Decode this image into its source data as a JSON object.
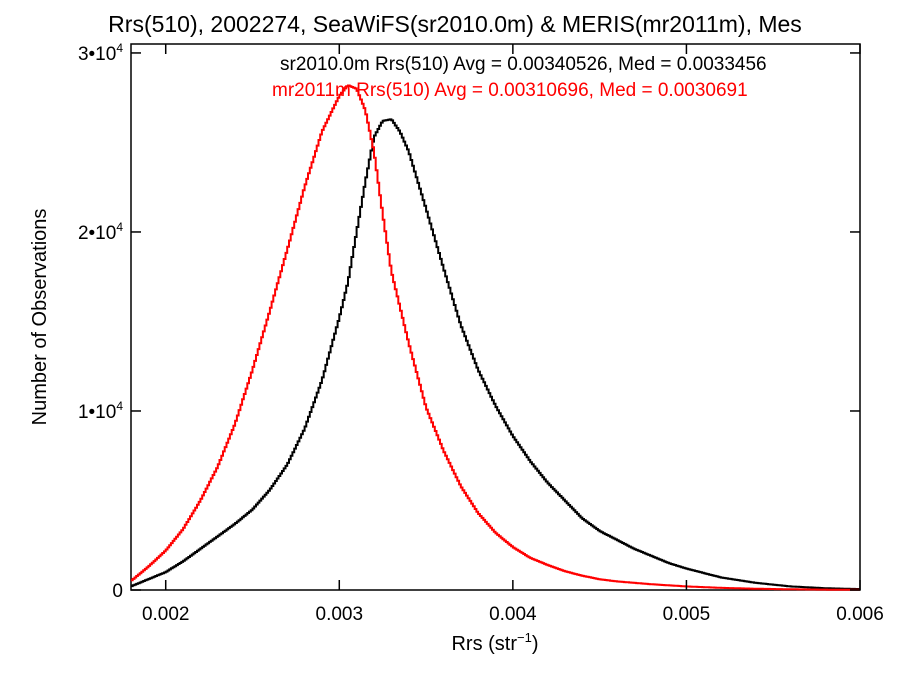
{
  "chart_data": {
    "type": "line",
    "title": "Rrs(510), 2002274, SeaWiFS(sr2010.0m) & MERIS(mr2011m), Mes",
    "xlabel": "Rrs (str",
    "xlabel_sup": "−1",
    "xlabel_suffix": ")",
    "ylabel": "Number of Observations",
    "xlim": [
      0.0018,
      0.006
    ],
    "ylim": [
      0,
      30500
    ],
    "x_ticks": [
      0.002,
      0.003,
      0.004,
      0.005,
      0.006
    ],
    "x_tick_labels": [
      "0.002",
      "0.003",
      "0.004",
      "0.005",
      "0.006"
    ],
    "y_ticks": [
      {
        "value": 0,
        "label": "0",
        "sup": ""
      },
      {
        "value": 10000,
        "label": "1•10",
        "sup": "4"
      },
      {
        "value": 20000,
        "label": "2•10",
        "sup": "4"
      },
      {
        "value": 30000,
        "label": "3•10",
        "sup": "4"
      }
    ],
    "grid": false,
    "legend_position": "top-right",
    "series": [
      {
        "name": "sr2010.0m Rrs(510) Avg = 0.00340526, Med = 0.0033456",
        "color": "#000000",
        "x": [
          0.0018,
          0.0019,
          0.002,
          0.0021,
          0.0022,
          0.0023,
          0.0024,
          0.0025,
          0.0026,
          0.0027,
          0.0028,
          0.0029,
          0.003,
          0.00305,
          0.0031,
          0.00315,
          0.0032,
          0.00325,
          0.0033,
          0.00335,
          0.0034,
          0.0035,
          0.0036,
          0.0037,
          0.0038,
          0.0039,
          0.004,
          0.0041,
          0.0042,
          0.0043,
          0.0044,
          0.0045,
          0.0046,
          0.0047,
          0.0048,
          0.0049,
          0.005,
          0.0052,
          0.0054,
          0.0056,
          0.0058,
          0.006
        ],
        "y": [
          200,
          600,
          1000,
          1600,
          2300,
          3000,
          3700,
          4500,
          5600,
          7000,
          9000,
          11700,
          15200,
          17200,
          20000,
          22800,
          25300,
          26200,
          26300,
          25600,
          24500,
          21300,
          18000,
          14800,
          12300,
          10300,
          8600,
          7200,
          6000,
          5000,
          4000,
          3300,
          2800,
          2300,
          1900,
          1500,
          1200,
          700,
          400,
          200,
          100,
          50
        ]
      },
      {
        "name": "mr2011m Rrs(510) Avg = 0.00310696, Med = 0.0030691",
        "color": "#ff0000",
        "x": [
          0.0018,
          0.0019,
          0.002,
          0.0021,
          0.0022,
          0.0023,
          0.0024,
          0.0025,
          0.0026,
          0.0027,
          0.0028,
          0.0029,
          0.003,
          0.00305,
          0.0031,
          0.00315,
          0.0032,
          0.00325,
          0.0033,
          0.0034,
          0.0035,
          0.0036,
          0.0037,
          0.0038,
          0.0039,
          0.004,
          0.0041,
          0.0042,
          0.0043,
          0.0044,
          0.0045,
          0.0046,
          0.0047,
          0.0048,
          0.0049,
          0.005,
          0.0052,
          0.0054,
          0.0056,
          0.0058,
          0.006
        ],
        "y": [
          500,
          1300,
          2200,
          3400,
          5000,
          6900,
          9300,
          12300,
          15600,
          19000,
          22500,
          25600,
          27600,
          28200,
          28000,
          26800,
          24500,
          21000,
          17800,
          13800,
          10200,
          7800,
          5800,
          4300,
          3200,
          2400,
          1800,
          1400,
          1050,
          800,
          600,
          480,
          400,
          320,
          260,
          200,
          120,
          70,
          40,
          20,
          10
        ]
      }
    ]
  }
}
